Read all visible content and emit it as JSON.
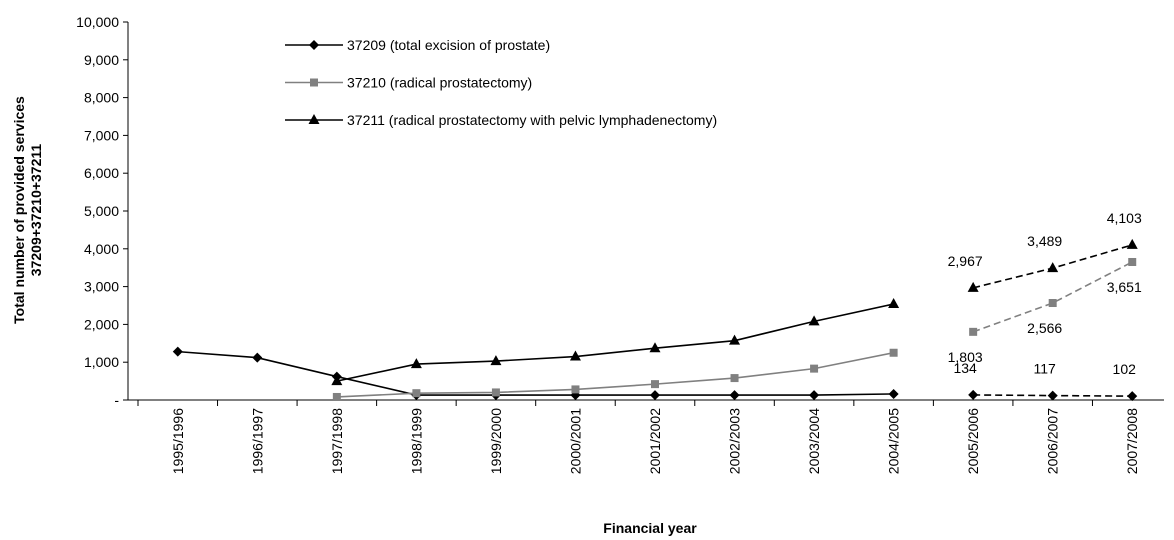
{
  "chart_data": {
    "type": "line",
    "xlabel": "Financial year",
    "ylabel": [
      "Total number of provided services",
      "37209+37210+37211"
    ],
    "categories": [
      "1995/1996",
      "1996/1997",
      "1997/1998",
      "1998/1999",
      "1999/2000",
      "2000/2001",
      "2001/2002",
      "2002/2003",
      "2003/2004",
      "2004/2005",
      "2005/2006",
      "2006/2007",
      "2007/2008"
    ],
    "dashed_from": "2005/2006",
    "ylim": [
      0,
      10000
    ],
    "yticks": [
      {
        "value": 0,
        "label": "-"
      },
      {
        "value": 1000,
        "label": "1,000"
      },
      {
        "value": 2000,
        "label": "2,000"
      },
      {
        "value": 3000,
        "label": "3,000"
      },
      {
        "value": 4000,
        "label": "4,000"
      },
      {
        "value": 5000,
        "label": "5,000"
      },
      {
        "value": 6000,
        "label": "6,000"
      },
      {
        "value": 7000,
        "label": "7,000"
      },
      {
        "value": 8000,
        "label": "8,000"
      },
      {
        "value": 9000,
        "label": "9,000"
      },
      {
        "value": 10000,
        "label": "10,000"
      }
    ],
    "legend": "upper left",
    "series": [
      {
        "name": "37209 (total excision of prostate)",
        "color": "#000000",
        "marker": "diamond",
        "values": [
          1280,
          1120,
          620,
          130,
          130,
          130,
          130,
          130,
          130,
          160,
          134,
          117,
          102
        ],
        "value_labels": [
          null,
          null,
          null,
          null,
          null,
          null,
          null,
          null,
          null,
          null,
          "134",
          "117",
          "102"
        ],
        "label_side": "above"
      },
      {
        "name": "37210 (radical prostatectomy)",
        "color": "#808080",
        "marker": "square",
        "values": [
          null,
          null,
          80,
          180,
          200,
          280,
          420,
          580,
          830,
          1250,
          1803,
          2566,
          3651
        ],
        "value_labels": [
          null,
          null,
          null,
          null,
          null,
          null,
          null,
          null,
          null,
          null,
          "1,803",
          "2,566",
          "3,651"
        ],
        "label_side": "below"
      },
      {
        "name": "37211 (radical prostatectomy with pelvic lymphadenectomy)",
        "color": "#000000",
        "marker": "triangle",
        "values": [
          null,
          null,
          500,
          950,
          1030,
          1150,
          1370,
          1570,
          2080,
          2540,
          2967,
          3489,
          4103
        ],
        "value_labels": [
          null,
          null,
          null,
          null,
          null,
          null,
          null,
          null,
          null,
          null,
          "2,967",
          "3,489",
          "4,103"
        ],
        "label_side": "above"
      }
    ]
  }
}
